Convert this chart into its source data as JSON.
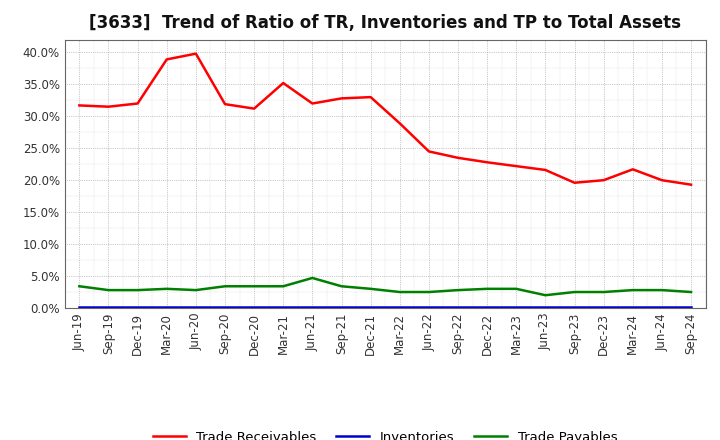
{
  "title": "[3633]  Trend of Ratio of TR, Inventories and TP to Total Assets",
  "x_labels": [
    "Jun-19",
    "Sep-19",
    "Dec-19",
    "Mar-20",
    "Jun-20",
    "Sep-20",
    "Dec-20",
    "Mar-21",
    "Jun-21",
    "Sep-21",
    "Dec-21",
    "Mar-22",
    "Jun-22",
    "Sep-22",
    "Dec-22",
    "Mar-23",
    "Jun-23",
    "Sep-23",
    "Dec-23",
    "Mar-24",
    "Jun-24",
    "Sep-24"
  ],
  "trade_receivables": [
    0.317,
    0.315,
    0.32,
    0.389,
    0.398,
    0.319,
    0.312,
    0.352,
    0.32,
    0.328,
    0.33,
    0.289,
    0.245,
    0.235,
    0.228,
    0.222,
    0.216,
    0.196,
    0.2,
    0.217,
    0.2,
    0.193
  ],
  "inventories": [
    0.002,
    0.002,
    0.002,
    0.002,
    0.002,
    0.002,
    0.002,
    0.002,
    0.002,
    0.002,
    0.002,
    0.002,
    0.002,
    0.002,
    0.002,
    0.002,
    0.002,
    0.002,
    0.002,
    0.002,
    0.002,
    0.002
  ],
  "trade_payables": [
    0.034,
    0.028,
    0.028,
    0.03,
    0.028,
    0.034,
    0.034,
    0.034,
    0.047,
    0.034,
    0.03,
    0.025,
    0.025,
    0.028,
    0.03,
    0.03,
    0.02,
    0.025,
    0.025,
    0.028,
    0.028,
    0.025
  ],
  "tr_color": "#FF0000",
  "inv_color": "#0000CD",
  "tp_color": "#008000",
  "ylim": [
    0.0,
    0.42
  ],
  "yticks": [
    0.0,
    0.05,
    0.1,
    0.15,
    0.2,
    0.25,
    0.3,
    0.35,
    0.4
  ],
  "bg_color": "#FFFFFF",
  "plot_bg_color": "#FFFFFF",
  "grid_color": "#999999",
  "line_width": 1.8,
  "legend_labels": [
    "Trade Receivables",
    "Inventories",
    "Trade Payables"
  ],
  "title_fontsize": 12,
  "tick_fontsize": 8.5
}
